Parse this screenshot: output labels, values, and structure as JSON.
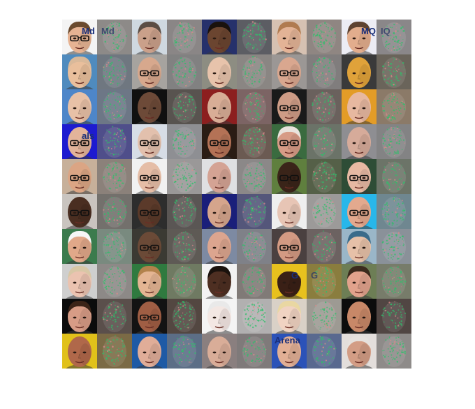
{
  "figure": {
    "rows": 10,
    "cols": 10,
    "background_color": "#ffffff",
    "heatmap_overlay_color": "#2fbf6a",
    "tiles": [
      [
        {
          "kind": "face",
          "bg": "#f4f4f4",
          "skin": "#e6b393",
          "hair": "#6a4a2e",
          "glasses": true,
          "text": "Md"
        },
        {
          "kind": "map",
          "base": "#8d8a88",
          "text": "Md"
        },
        {
          "kind": "face",
          "bg": "#cfd8e0",
          "skin": "#caa08a",
          "hair": "#5b4d44",
          "glasses": false
        },
        {
          "kind": "map",
          "base": "#8a8686"
        },
        {
          "kind": "face",
          "bg": "#26316b",
          "skin": "#6b4530",
          "hair": "#1a120d",
          "glasses": false
        },
        {
          "kind": "map",
          "base": "#5c5d63"
        },
        {
          "kind": "face",
          "bg": "#d6c1b2",
          "skin": "#e3b396",
          "hair": "#b07b50",
          "glasses": false
        },
        {
          "kind": "map",
          "base": "#8f8682"
        },
        {
          "kind": "face",
          "bg": "#ececf4",
          "skin": "#e2ad8d",
          "hair": "#5d4231",
          "glasses": false,
          "text": "MQ"
        },
        {
          "kind": "map",
          "base": "#8a8789",
          "text": "IQ"
        }
      ],
      [
        {
          "kind": "face",
          "bg": "#4f8bbe",
          "skin": "#e9bf9c",
          "hair": "#d9b99a",
          "glasses": false
        },
        {
          "kind": "map",
          "base": "#6f7780"
        },
        {
          "kind": "face",
          "bg": "#a6a39f",
          "skin": "#d7a88d",
          "hair": "#d7a88d",
          "glasses": true
        },
        {
          "kind": "map",
          "base": "#818181"
        },
        {
          "kind": "face",
          "bg": "#8d8d82",
          "skin": "#e7c3ab",
          "hair": "#e7c3ab",
          "glasses": false
        },
        {
          "kind": "map",
          "base": "#8a8683"
        },
        {
          "kind": "face",
          "bg": "#9b9795",
          "skin": "#d9a78f",
          "hair": "#d9a78f",
          "glasses": true
        },
        {
          "kind": "map",
          "base": "#807d7d"
        },
        {
          "kind": "face",
          "bg": "#3a3a3a",
          "skin": "#e0a23a",
          "hair": "#e0a23a",
          "glasses": false
        },
        {
          "kind": "map",
          "base": "#6a645a"
        }
      ],
      [
        {
          "kind": "face",
          "bg": "#4e86c9",
          "skin": "#e8c1a7",
          "hair": "#e8c1a7",
          "glasses": false
        },
        {
          "kind": "map",
          "base": "#6d7786"
        },
        {
          "kind": "face",
          "bg": "#101010",
          "skin": "#6d4a38",
          "hair": "#6d4a38",
          "glasses": false
        },
        {
          "kind": "map",
          "base": "#58534f"
        },
        {
          "kind": "face",
          "bg": "#8c1f1f",
          "skin": "#d8ad96",
          "hair": "#d8ad96",
          "glasses": false
        },
        {
          "kind": "map",
          "base": "#7c6464"
        },
        {
          "kind": "face",
          "bg": "#1a1a1a",
          "skin": "#ce9c86",
          "hair": "#ce9c86",
          "glasses": true
        },
        {
          "kind": "map",
          "base": "#6a615d"
        },
        {
          "kind": "face",
          "bg": "#e39c27",
          "skin": "#e7b8a0",
          "hair": "#e7b8a0",
          "glasses": false
        },
        {
          "kind": "map",
          "base": "#8b7a68"
        }
      ],
      [
        {
          "kind": "face",
          "bg": "#1d1bd0",
          "skin": "#e3b49a",
          "hair": "#e3b49a",
          "glasses": true,
          "text": "als"
        },
        {
          "kind": "map",
          "base": "#4f4e8a"
        },
        {
          "kind": "face",
          "bg": "#d7dde6",
          "skin": "#e2c0ad",
          "hair": "#e2c0ad",
          "glasses": true
        },
        {
          "kind": "map",
          "base": "#8e8f93"
        },
        {
          "kind": "face",
          "bg": "#2a1c14",
          "skin": "#b47256",
          "hair": "#b47256",
          "glasses": true
        },
        {
          "kind": "map",
          "base": "#6b5a52"
        },
        {
          "kind": "face",
          "bg": "#3a6b3f",
          "skin": "#d79b86",
          "hair": "#e9e3dd",
          "glasses": true
        },
        {
          "kind": "map",
          "base": "#6b7368"
        },
        {
          "kind": "face",
          "bg": "#8e8e92",
          "skin": "#d6ab9a",
          "hair": "#d6ab9a",
          "glasses": false
        },
        {
          "kind": "map",
          "base": "#838384"
        }
      ],
      [
        {
          "kind": "face",
          "bg": "#c7b09a",
          "skin": "#dba584",
          "hair": "#dba584",
          "glasses": true
        },
        {
          "kind": "map",
          "base": "#8b817a"
        },
        {
          "kind": "face",
          "bg": "#f1f1f1",
          "skin": "#e5bda6",
          "hair": "#e5bda6",
          "glasses": true
        },
        {
          "kind": "map",
          "base": "#9a9898"
        },
        {
          "kind": "face",
          "bg": "#dfe0e2",
          "skin": "#d4a394",
          "hair": "#d4a394",
          "glasses": false
        },
        {
          "kind": "map",
          "base": "#8b8888"
        },
        {
          "kind": "face",
          "bg": "#5f7f3e",
          "skin": "#3a2419",
          "hair": "#3a2419",
          "glasses": true
        },
        {
          "kind": "map",
          "base": "#556048"
        },
        {
          "kind": "face",
          "bg": "#2e4d36",
          "skin": "#e7b9a3",
          "hair": "#e7b9a3",
          "glasses": true
        },
        {
          "kind": "map",
          "base": "#6c7468"
        }
      ],
      [
        {
          "kind": "face",
          "bg": "#c9c4bf",
          "skin": "#4a2e21",
          "hair": "#4a2e21",
          "glasses": true
        },
        {
          "kind": "map",
          "base": "#73706c"
        },
        {
          "kind": "face",
          "bg": "#2d2d2d",
          "skin": "#5b3a2a",
          "hair": "#5b3a2a",
          "glasses": true
        },
        {
          "kind": "map",
          "base": "#5a5654"
        },
        {
          "kind": "face",
          "bg": "#1a1f7a",
          "skin": "#d5a58c",
          "hair": "#d5a58c",
          "glasses": false
        },
        {
          "kind": "map",
          "base": "#54567a"
        },
        {
          "kind": "face",
          "bg": "#efefef",
          "skin": "#e7c5b5",
          "hair": "#e7c5b5",
          "glasses": false
        },
        {
          "kind": "map",
          "base": "#9c9a99"
        },
        {
          "kind": "face",
          "bg": "#28b7ea",
          "skin": "#e3a98e",
          "hair": "#e3a98e",
          "glasses": true
        },
        {
          "kind": "map",
          "base": "#6f8790"
        }
      ],
      [
        {
          "kind": "face",
          "bg": "#3b7b4d",
          "skin": "#e1a889",
          "hair": "#f6f6f6",
          "glasses": false
        },
        {
          "kind": "map",
          "base": "#798a7f"
        },
        {
          "kind": "face",
          "bg": "#3b3a33",
          "skin": "#6b4a37",
          "hair": "#6b4a37",
          "glasses": true
        },
        {
          "kind": "map",
          "base": "#5e5a55"
        },
        {
          "kind": "face",
          "bg": "#7d8aa2",
          "skin": "#dca58f",
          "hair": "#dca58f",
          "glasses": false
        },
        {
          "kind": "map",
          "base": "#7f8188"
        },
        {
          "kind": "face",
          "bg": "#4a4040",
          "skin": "#d39a83",
          "hair": "#d39a83",
          "glasses": true
        },
        {
          "kind": "map",
          "base": "#6c6261"
        },
        {
          "kind": "face",
          "bg": "#9ab6c8",
          "skin": "#e6c0a8",
          "hair": "#3a6b8a",
          "glasses": false
        },
        {
          "kind": "map",
          "base": "#8a9199"
        }
      ],
      [
        {
          "kind": "face",
          "bg": "#cfcfcf",
          "skin": "#ebc3b0",
          "hair": "#d8c7a6",
          "glasses": false
        },
        {
          "kind": "map",
          "base": "#8d8987"
        },
        {
          "kind": "face",
          "bg": "#2f7a3f",
          "skin": "#e4b593",
          "hair": "#b2824c",
          "glasses": false
        },
        {
          "kind": "map",
          "base": "#6f7a62"
        },
        {
          "kind": "face",
          "bg": "#f2f2f2",
          "skin": "#4e2f22",
          "hair": "#1a120d",
          "glasses": false
        },
        {
          "kind": "map",
          "base": "#807a77"
        },
        {
          "kind": "face",
          "bg": "#e7c11e",
          "skin": "#3a2016",
          "hair": "#e7c11e",
          "glasses": false,
          "text": "G"
        },
        {
          "kind": "map",
          "base": "#8a7d3e",
          "text": "G"
        },
        {
          "kind": "face",
          "bg": "#6d7e55",
          "skin": "#e1a28c",
          "hair": "#3b2a1d",
          "glasses": false
        },
        {
          "kind": "map",
          "base": "#777c6a"
        }
      ],
      [
        {
          "kind": "face",
          "bg": "#0c0c0c",
          "skin": "#d79c86",
          "hair": "#3b2418",
          "glasses": false
        },
        {
          "kind": "map",
          "base": "#5a4f4b"
        },
        {
          "kind": "face",
          "bg": "#131313",
          "skin": "#a05e44",
          "hair": "#a05e44",
          "glasses": true
        },
        {
          "kind": "map",
          "base": "#534741"
        },
        {
          "kind": "face",
          "bg": "#f4f4f4",
          "skin": "#f3e7e3",
          "hair": "#e9e9e9",
          "glasses": false
        },
        {
          "kind": "map",
          "base": "#b1b0b0"
        },
        {
          "kind": "face",
          "bg": "#d9d1c7",
          "skin": "#f0d3c2",
          "hair": "#e9d7a2",
          "glasses": false
        },
        {
          "kind": "map",
          "base": "#9d9a93"
        },
        {
          "kind": "face",
          "bg": "#0c0c0c",
          "skin": "#c88868",
          "hair": "#c88868",
          "glasses": false
        },
        {
          "kind": "map",
          "base": "#514643"
        }
      ],
      [
        {
          "kind": "face",
          "bg": "#e1c11a",
          "skin": "#b0684a",
          "hair": "#b0684a",
          "glasses": false
        },
        {
          "kind": "map",
          "base": "#7b6a45"
        },
        {
          "kind": "face",
          "bg": "#1e5aa5",
          "skin": "#e0ad98",
          "hair": "#e0ad98",
          "glasses": false
        },
        {
          "kind": "map",
          "base": "#5c6e86"
        },
        {
          "kind": "face",
          "bg": "#8a7f7f",
          "skin": "#d9ad98",
          "hair": "#d9ad98",
          "glasses": false
        },
        {
          "kind": "map",
          "base": "#7f7a7a"
        },
        {
          "kind": "face",
          "bg": "#2b52b8",
          "skin": "#e1af95",
          "hair": "#e1af95",
          "glasses": false,
          "text": "Arena"
        },
        {
          "kind": "map",
          "base": "#59698f"
        },
        {
          "kind": "face",
          "bg": "#e3dedb",
          "skin": "#d39d85",
          "hair": "#e6e1dd",
          "glasses": false
        },
        {
          "kind": "map",
          "base": "#8e8b89"
        }
      ]
    ]
  }
}
